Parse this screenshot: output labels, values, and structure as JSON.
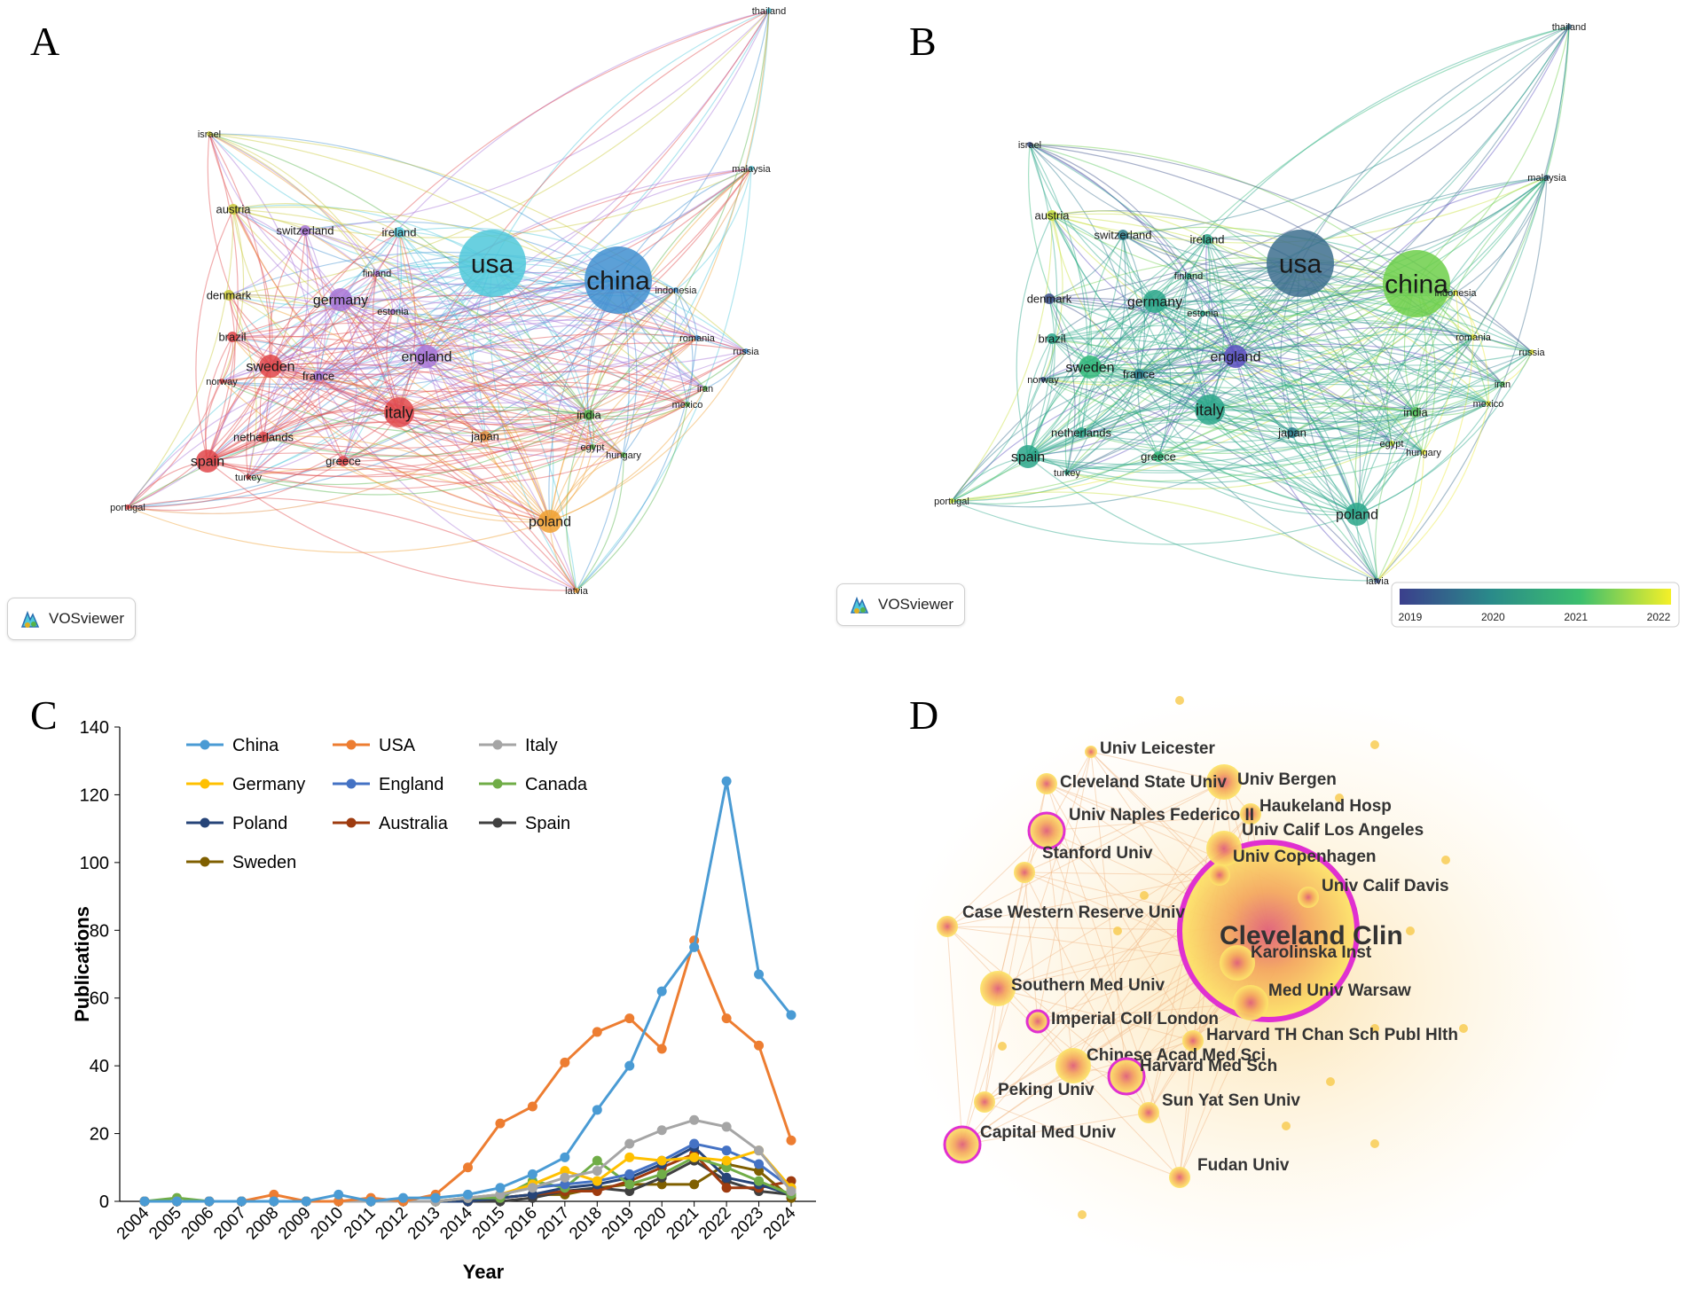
{
  "panels": {
    "a": {
      "letter": "A"
    },
    "b": {
      "letter": "B"
    },
    "c": {
      "letter": "C"
    },
    "d": {
      "letter": "D"
    }
  },
  "vosviewer_label": "VOSviewer",
  "network_a": {
    "nodes": [
      {
        "id": "usa",
        "label": "usa",
        "color": "#4fc8db",
        "size": "xl"
      },
      {
        "id": "china",
        "label": "china",
        "color": "#3f8fd0",
        "size": "xl"
      },
      {
        "id": "thailand",
        "label": "thailand",
        "color": "#4fc8db",
        "size": "xs"
      },
      {
        "id": "malaysia",
        "label": "malaysia",
        "color": "#4fc8db",
        "size": "xs"
      },
      {
        "id": "israel",
        "label": "israel",
        "color": "#c9c93a",
        "size": "xs"
      },
      {
        "id": "austria",
        "label": "austria",
        "color": "#c9c93a",
        "size": "s"
      },
      {
        "id": "switzerland",
        "label": "switzerland",
        "color": "#a774d6",
        "size": "s"
      },
      {
        "id": "ireland",
        "label": "ireland",
        "color": "#4fc8db",
        "size": "s"
      },
      {
        "id": "finland",
        "label": "finland",
        "color": "#a774d6",
        "size": "xs"
      },
      {
        "id": "indonesia",
        "label": "indonesia",
        "color": "#3f8fd0",
        "size": "xs"
      },
      {
        "id": "denmark",
        "label": "denmark",
        "color": "#c9c93a",
        "size": "s"
      },
      {
        "id": "germany",
        "label": "germany",
        "color": "#a774d6",
        "size": "m"
      },
      {
        "id": "estonia",
        "label": "estonia",
        "color": "#a774d6",
        "size": "xs"
      },
      {
        "id": "brazil",
        "label": "brazil",
        "color": "#e0464a",
        "size": "s"
      },
      {
        "id": "england",
        "label": "england",
        "color": "#a774d6",
        "size": "m"
      },
      {
        "id": "romania",
        "label": "romania",
        "color": "#3f8fd0",
        "size": "xs"
      },
      {
        "id": "russia",
        "label": "russia",
        "color": "#3f8fd0",
        "size": "xs"
      },
      {
        "id": "sweden",
        "label": "sweden",
        "color": "#e0464a",
        "size": "m"
      },
      {
        "id": "france",
        "label": "france",
        "color": "#a774d6",
        "size": "s"
      },
      {
        "id": "norway",
        "label": "norway",
        "color": "#e0464a",
        "size": "xs"
      },
      {
        "id": "iran",
        "label": "iran",
        "color": "#55b34a",
        "size": "xs"
      },
      {
        "id": "italy",
        "label": "italy",
        "color": "#e0464a",
        "size": "l"
      },
      {
        "id": "india",
        "label": "india",
        "color": "#55b34a",
        "size": "s"
      },
      {
        "id": "mexico",
        "label": "mexico",
        "color": "#55b34a",
        "size": "xs"
      },
      {
        "id": "netherlands",
        "label": "netherlands",
        "color": "#e0464a",
        "size": "s"
      },
      {
        "id": "japan",
        "label": "japan",
        "color": "#e08a3a",
        "size": "s"
      },
      {
        "id": "egypt",
        "label": "egypt",
        "color": "#55b34a",
        "size": "xs"
      },
      {
        "id": "hungary",
        "label": "hungary",
        "color": "#55b34a",
        "size": "xs"
      },
      {
        "id": "spain",
        "label": "spain",
        "color": "#e0464a",
        "size": "m"
      },
      {
        "id": "greece",
        "label": "greece",
        "color": "#e0464a",
        "size": "s"
      },
      {
        "id": "turkey",
        "label": "turkey",
        "color": "#e0464a",
        "size": "xs"
      },
      {
        "id": "portugal",
        "label": "portugal",
        "color": "#e0464a",
        "size": "xs"
      },
      {
        "id": "poland",
        "label": "poland",
        "color": "#f0a030",
        "size": "m"
      },
      {
        "id": "latvia",
        "label": "latvia",
        "color": "#f0a030",
        "size": "xs"
      }
    ]
  },
  "network_b": {
    "nodes": [
      {
        "id": "usa",
        "label": "usa",
        "color": "#3d6f8e",
        "size": "xl"
      },
      {
        "id": "china",
        "label": "china",
        "color": "#6dcf4a",
        "size": "xl"
      },
      {
        "id": "thailand",
        "label": "thailand",
        "color": "#3d6f8e",
        "size": "xs"
      },
      {
        "id": "malaysia",
        "label": "malaysia",
        "color": "#3d6f8e",
        "size": "xs"
      },
      {
        "id": "israel",
        "label": "israel",
        "color": "#3b4f8a",
        "size": "xs"
      },
      {
        "id": "austria",
        "label": "austria",
        "color": "#c8e03a",
        "size": "s"
      },
      {
        "id": "switzerland",
        "label": "switzerland",
        "color": "#2a7c8e",
        "size": "s"
      },
      {
        "id": "ireland",
        "label": "ireland",
        "color": "#2aa68a",
        "size": "s"
      },
      {
        "id": "finland",
        "label": "finland",
        "color": "#2aa68a",
        "size": "xs"
      },
      {
        "id": "indonesia",
        "label": "indonesia",
        "color": "#e8e83a",
        "size": "xs"
      },
      {
        "id": "denmark",
        "label": "denmark",
        "color": "#3b4f8a",
        "size": "s"
      },
      {
        "id": "germany",
        "label": "germany",
        "color": "#2aa68a",
        "size": "m"
      },
      {
        "id": "estonia",
        "label": "estonia",
        "color": "#2aa68a",
        "size": "xs"
      },
      {
        "id": "brazil",
        "label": "brazil",
        "color": "#2aa68a",
        "size": "s"
      },
      {
        "id": "england",
        "label": "england",
        "color": "#5a4fbf",
        "size": "m"
      },
      {
        "id": "romania",
        "label": "romania",
        "color": "#e8e83a",
        "size": "xs"
      },
      {
        "id": "russia",
        "label": "russia",
        "color": "#e8e83a",
        "size": "xs"
      },
      {
        "id": "sweden",
        "label": "sweden",
        "color": "#33b87a",
        "size": "m"
      },
      {
        "id": "france",
        "label": "france",
        "color": "#2a7c8e",
        "size": "s"
      },
      {
        "id": "norway",
        "label": "norway",
        "color": "#3b4f8a",
        "size": "xs"
      },
      {
        "id": "iran",
        "label": "iran",
        "color": "#5bc860",
        "size": "xs"
      },
      {
        "id": "italy",
        "label": "italy",
        "color": "#2aa68a",
        "size": "l"
      },
      {
        "id": "india",
        "label": "india",
        "color": "#5bc860",
        "size": "s"
      },
      {
        "id": "mexico",
        "label": "mexico",
        "color": "#e8e83a",
        "size": "xs"
      },
      {
        "id": "netherlands",
        "label": "netherlands",
        "color": "#2aa68a",
        "size": "s"
      },
      {
        "id": "japan",
        "label": "japan",
        "color": "#2a7c8e",
        "size": "s"
      },
      {
        "id": "egypt",
        "label": "egypt",
        "color": "#c8e03a",
        "size": "xs"
      },
      {
        "id": "hungary",
        "label": "hungary",
        "color": "#e8e83a",
        "size": "xs"
      },
      {
        "id": "spain",
        "label": "spain",
        "color": "#2aa68a",
        "size": "m"
      },
      {
        "id": "greece",
        "label": "greece",
        "color": "#33b87a",
        "size": "s"
      },
      {
        "id": "turkey",
        "label": "turkey",
        "color": "#2aa68a",
        "size": "xs"
      },
      {
        "id": "portugal",
        "label": "portugal",
        "color": "#c8e03a",
        "size": "xs"
      },
      {
        "id": "poland",
        "label": "poland",
        "color": "#2aa68a",
        "size": "m"
      },
      {
        "id": "latvia",
        "label": "latvia",
        "color": "#3b4f8a",
        "size": "xs"
      }
    ],
    "colorbar": {
      "ticks": [
        "2019",
        "2020",
        "2021",
        "2022"
      ],
      "colors": [
        "#3b3f8c",
        "#2a8a8a",
        "#3cbf6e",
        "#f5f028"
      ]
    }
  },
  "chart_data": {
    "type": "line",
    "title": "",
    "xlabel": "Year",
    "ylabel": "Publications",
    "ylim": [
      0,
      140
    ],
    "yticks": [
      0,
      20,
      40,
      60,
      80,
      100,
      120,
      140
    ],
    "x": [
      "2004",
      "2005",
      "2006",
      "2007",
      "2008",
      "2009",
      "2010",
      "2011",
      "2012",
      "2013",
      "2014",
      "2015",
      "2016",
      "2017",
      "2018",
      "2019",
      "2020",
      "2021",
      "2022",
      "2023",
      "2024"
    ],
    "series": [
      {
        "name": "China",
        "color": "#4a9bd4",
        "values": [
          0,
          0,
          0,
          0,
          0,
          0,
          2,
          0,
          1,
          1,
          2,
          4,
          8,
          13,
          27,
          40,
          62,
          75,
          124,
          67,
          55
        ]
      },
      {
        "name": "USA",
        "color": "#ed7d31",
        "values": [
          0,
          0,
          0,
          0,
          2,
          0,
          0,
          1,
          0,
          2,
          10,
          23,
          28,
          41,
          50,
          54,
          45,
          77,
          54,
          46,
          18
        ]
      },
      {
        "name": "Italy",
        "color": "#a5a5a5",
        "values": [
          0,
          0,
          0,
          0,
          0,
          0,
          0,
          0,
          0,
          0,
          1,
          2,
          4,
          7,
          9,
          17,
          21,
          24,
          22,
          15,
          3
        ]
      },
      {
        "name": "Germany",
        "color": "#ffc000",
        "values": [
          0,
          0,
          0,
          0,
          0,
          0,
          0,
          0,
          0,
          0,
          1,
          2,
          5,
          9,
          6,
          13,
          12,
          13,
          12,
          15,
          4
        ]
      },
      {
        "name": "England",
        "color": "#4472c4",
        "values": [
          0,
          0,
          0,
          0,
          0,
          0,
          0,
          0,
          0,
          0,
          1,
          2,
          4,
          5,
          6,
          8,
          12,
          17,
          15,
          11,
          4
        ]
      },
      {
        "name": "Canada",
        "color": "#70ad47",
        "values": [
          0,
          1,
          0,
          0,
          0,
          0,
          0,
          0,
          0,
          0,
          1,
          1,
          6,
          4,
          12,
          5,
          8,
          13,
          10,
          6,
          2
        ]
      },
      {
        "name": "Poland",
        "color": "#264478",
        "values": [
          0,
          0,
          0,
          0,
          0,
          0,
          0,
          0,
          0,
          0,
          0,
          1,
          2,
          4,
          5,
          7,
          11,
          16,
          7,
          5,
          2
        ]
      },
      {
        "name": "Australia",
        "color": "#9e3b0f",
        "values": [
          0,
          0,
          0,
          0,
          0,
          0,
          0,
          0,
          0,
          0,
          0,
          1,
          2,
          3,
          3,
          6,
          10,
          14,
          4,
          4,
          6
        ]
      },
      {
        "name": "Spain",
        "color": "#404040",
        "values": [
          0,
          0,
          0,
          0,
          0,
          0,
          0,
          0,
          0,
          0,
          0,
          0,
          1,
          3,
          4,
          3,
          7,
          12,
          6,
          3,
          2
        ]
      },
      {
        "name": "Sweden",
        "color": "#7f5f00",
        "values": [
          0,
          0,
          0,
          0,
          0,
          0,
          0,
          0,
          0,
          0,
          0,
          1,
          2,
          2,
          4,
          5,
          5,
          5,
          11,
          9,
          1
        ]
      }
    ]
  },
  "network_d": {
    "nodes": [
      {
        "label": "Cleveland Clin",
        "size": "xxl",
        "ring": true
      },
      {
        "label": "Univ Leicester",
        "size": "xs",
        "ring": false
      },
      {
        "label": "Univ Bergen",
        "size": "m",
        "ring": false
      },
      {
        "label": "Cleveland State Univ",
        "size": "s",
        "ring": false
      },
      {
        "label": "Haukeland Hosp",
        "size": "s",
        "ring": false
      },
      {
        "label": "Univ Naples Federico II",
        "size": "m",
        "ring": true
      },
      {
        "label": "Univ Calif Los Angeles",
        "size": "m",
        "ring": false
      },
      {
        "label": "Stanford Univ",
        "size": "s",
        "ring": false
      },
      {
        "label": "Univ Copenhagen",
        "size": "s",
        "ring": false
      },
      {
        "label": "Univ Calif Davis",
        "size": "s",
        "ring": false
      },
      {
        "label": "Case Western Reserve Univ",
        "size": "s",
        "ring": false
      },
      {
        "label": "Karolinska Inst",
        "size": "m",
        "ring": false
      },
      {
        "label": "Southern Med Univ",
        "size": "m",
        "ring": false
      },
      {
        "label": "Med Univ Warsaw",
        "size": "m",
        "ring": false
      },
      {
        "label": "Imperial Coll London",
        "size": "s",
        "ring": true
      },
      {
        "label": "Harvard TH Chan Sch Publ Hlth",
        "size": "s",
        "ring": false
      },
      {
        "label": "Chinese Acad Med Sci",
        "size": "m",
        "ring": false
      },
      {
        "label": "Harvard Med Sch",
        "size": "m",
        "ring": true
      },
      {
        "label": "Peking Univ",
        "size": "s",
        "ring": false
      },
      {
        "label": "Sun Yat Sen Univ",
        "size": "s",
        "ring": false
      },
      {
        "label": "Capital Med Univ",
        "size": "m",
        "ring": true
      },
      {
        "label": "Fudan Univ",
        "size": "s",
        "ring": false
      }
    ]
  }
}
